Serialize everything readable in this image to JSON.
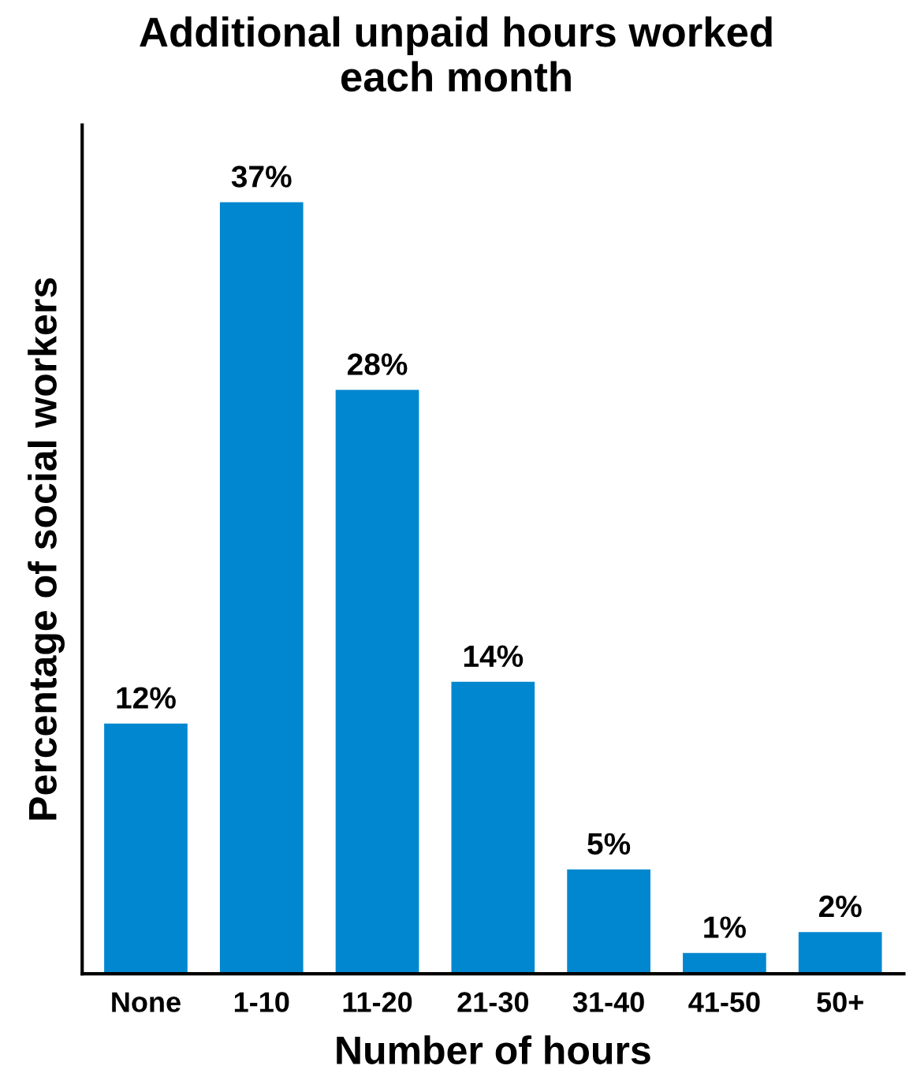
{
  "chart_data": {
    "type": "bar",
    "title": "Additional unpaid hours worked\neach month",
    "xlabel": "Number of hours",
    "ylabel": "Percentage of social workers",
    "categories": [
      "None",
      "1-10",
      "11-20",
      "21-30",
      "31-40",
      "41-50",
      "50+"
    ],
    "values": [
      12,
      37,
      28,
      14,
      5,
      1,
      2
    ],
    "value_labels": [
      "12%",
      "37%",
      "28%",
      "14%",
      "5%",
      "1%",
      "2%"
    ],
    "color": "#0087cf",
    "grid": false,
    "legend": false
  }
}
